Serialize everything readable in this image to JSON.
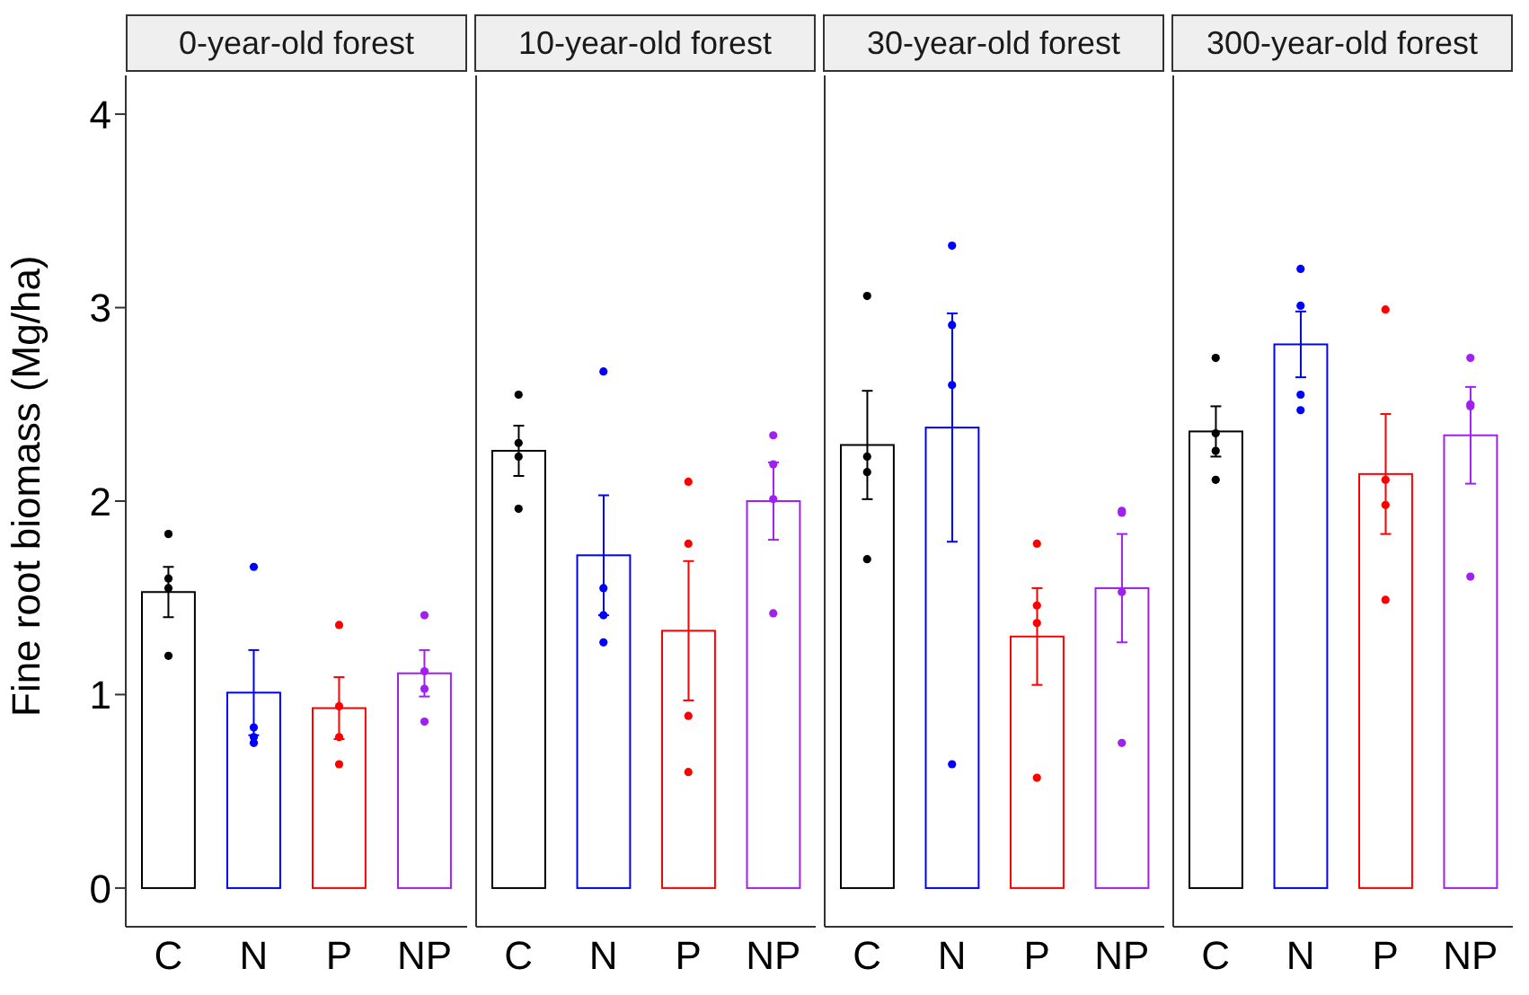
{
  "chart_data": [
    {
      "type": "bar",
      "title": "0-year-old forest",
      "ylabel": "Fine root biomass (Mg/ha)",
      "categories": [
        "C",
        "N",
        "P",
        "NP"
      ],
      "ylim": [
        -0.2,
        4.2
      ],
      "yticks": [
        0,
        1,
        2,
        3,
        4
      ],
      "series": [
        {
          "type": "bar",
          "values": [
            1.53,
            1.01,
            0.93,
            1.11
          ],
          "colors": [
            "#000000",
            "#0000ff",
            "#ff0000",
            "#a020f0"
          ],
          "errors": [
            0.13,
            0.22,
            0.16,
            0.12
          ]
        },
        {
          "type": "scatter",
          "x": [
            "C",
            "C",
            "C",
            "C",
            "N",
            "N",
            "N",
            "N",
            "P",
            "P",
            "P",
            "P",
            "NP",
            "NP",
            "NP",
            "NP"
          ],
          "values": [
            1.83,
            1.6,
            1.55,
            1.2,
            1.66,
            0.83,
            0.78,
            0.75,
            1.36,
            0.94,
            0.78,
            0.64,
            1.41,
            1.12,
            1.03,
            0.86
          ],
          "colors": [
            "#000000",
            "#000000",
            "#000000",
            "#000000",
            "#0000ff",
            "#0000ff",
            "#0000ff",
            "#0000ff",
            "#ff0000",
            "#ff0000",
            "#ff0000",
            "#ff0000",
            "#a020f0",
            "#a020f0",
            "#a020f0",
            "#a020f0"
          ]
        }
      ]
    },
    {
      "type": "bar",
      "title": "10-year-old forest",
      "categories": [
        "C",
        "N",
        "P",
        "NP"
      ],
      "ylim": [
        -0.2,
        4.2
      ],
      "yticks": [
        0,
        1,
        2,
        3,
        4
      ],
      "tick_labels": "x",
      "series": [
        {
          "type": "bar",
          "values": [
            2.26,
            1.72,
            1.33,
            2.0
          ],
          "colors": [
            "#000000",
            "#0000ff",
            "#ff0000",
            "#a020f0"
          ],
          "errors": [
            0.13,
            0.31,
            0.36,
            0.2
          ]
        },
        {
          "type": "scatter",
          "x": [
            "C",
            "C",
            "C",
            "C",
            "N",
            "N",
            "N",
            "N",
            "P",
            "P",
            "P",
            "P",
            "NP",
            "NP",
            "NP",
            "NP"
          ],
          "values": [
            2.55,
            2.3,
            2.23,
            1.96,
            2.67,
            1.55,
            1.41,
            1.27,
            2.1,
            1.78,
            0.89,
            0.6,
            2.34,
            2.19,
            2.01,
            1.42
          ],
          "colors": [
            "#000000",
            "#000000",
            "#000000",
            "#000000",
            "#0000ff",
            "#0000ff",
            "#0000ff",
            "#0000ff",
            "#ff0000",
            "#ff0000",
            "#ff0000",
            "#ff0000",
            "#a020f0",
            "#a020f0",
            "#a020f0",
            "#a020f0"
          ]
        }
      ]
    },
    {
      "type": "bar",
      "title": "30-year-old forest",
      "categories": [
        "C",
        "N",
        "P",
        "NP"
      ],
      "ylim": [
        -0.2,
        4.2
      ],
      "yticks": [
        0,
        1,
        2,
        3,
        4
      ],
      "tick_labels": "x",
      "series": [
        {
          "type": "bar",
          "values": [
            2.29,
            2.38,
            1.3,
            1.55
          ],
          "colors": [
            "#000000",
            "#0000ff",
            "#ff0000",
            "#a020f0"
          ],
          "errors": [
            0.28,
            0.59,
            0.25,
            0.28
          ]
        },
        {
          "type": "scatter",
          "x": [
            "C",
            "C",
            "C",
            "C",
            "N",
            "N",
            "N",
            "N",
            "P",
            "P",
            "P",
            "P",
            "NP",
            "NP",
            "NP",
            "NP"
          ],
          "values": [
            3.06,
            2.23,
            2.15,
            1.7,
            3.32,
            2.91,
            2.6,
            0.64,
            1.78,
            1.46,
            1.37,
            0.57,
            1.95,
            1.94,
            1.53,
            0.75
          ],
          "colors": [
            "#000000",
            "#000000",
            "#000000",
            "#000000",
            "#0000ff",
            "#0000ff",
            "#0000ff",
            "#0000ff",
            "#ff0000",
            "#ff0000",
            "#ff0000",
            "#ff0000",
            "#a020f0",
            "#a020f0",
            "#a020f0",
            "#a020f0"
          ]
        }
      ]
    },
    {
      "type": "bar",
      "title": "300-year-old forest",
      "categories": [
        "C",
        "N",
        "P",
        "NP"
      ],
      "ylim": [
        -0.2,
        4.2
      ],
      "yticks": [
        0,
        1,
        2,
        3,
        4
      ],
      "tick_labels": "x",
      "series": [
        {
          "type": "bar",
          "values": [
            2.36,
            2.81,
            2.14,
            2.34
          ],
          "colors": [
            "#000000",
            "#0000ff",
            "#ff0000",
            "#a020f0"
          ],
          "errors": [
            0.13,
            0.17,
            0.31,
            0.25
          ]
        },
        {
          "type": "scatter",
          "x": [
            "C",
            "C",
            "C",
            "C",
            "N",
            "N",
            "N",
            "N",
            "P",
            "P",
            "P",
            "P",
            "NP",
            "NP",
            "NP",
            "NP"
          ],
          "values": [
            2.74,
            2.35,
            2.26,
            2.11,
            3.2,
            3.01,
            2.55,
            2.47,
            2.99,
            2.11,
            1.98,
            1.49,
            2.74,
            2.5,
            2.49,
            1.61
          ],
          "colors": [
            "#000000",
            "#000000",
            "#000000",
            "#000000",
            "#0000ff",
            "#0000ff",
            "#0000ff",
            "#0000ff",
            "#ff0000",
            "#ff0000",
            "#ff0000",
            "#ff0000",
            "#a020f0",
            "#a020f0",
            "#a020f0",
            "#a020f0"
          ]
        }
      ]
    }
  ]
}
